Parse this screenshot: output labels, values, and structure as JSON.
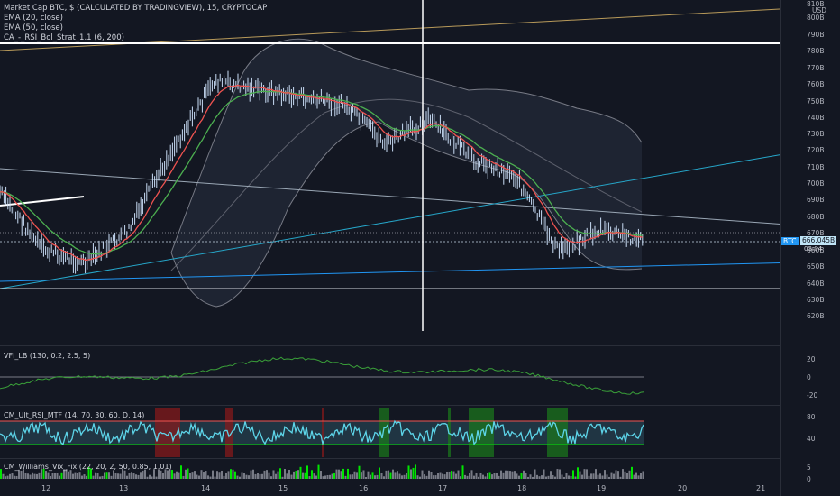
{
  "header": {
    "symbol_line": "Market Cap BTC, $ (CALCULATED BY TRADINGVIEW), 15, CRYPTOCAP",
    "indicators": [
      "EMA (20, close)",
      "EMA (50, close)",
      "CA_-_RSI_Bol_Strat_1.1 (6, 200)"
    ]
  },
  "price_axis": {
    "currency": "USD",
    "top_label": "810B",
    "ticks": [
      "800B",
      "790B",
      "780B",
      "770B",
      "760B",
      "750B",
      "740B",
      "730B",
      "720B",
      "710B",
      "700B",
      "690B",
      "680B",
      "670B",
      "660B",
      "650B",
      "640B",
      "630B",
      "620B"
    ],
    "ticks_y": [
      20,
      39,
      57,
      76,
      94,
      113,
      131,
      149,
      167,
      186,
      204,
      222,
      241,
      259,
      278,
      296,
      315,
      333,
      351
    ]
  },
  "last_price": {
    "symbol": "BTC",
    "value": "666.045B",
    "countdown": "03:04"
  },
  "panes": {
    "vfi": {
      "label": "VFI_LB (130, 0.2, 2.5, 5)",
      "ticks": [
        "20",
        "0",
        "-20"
      ]
    },
    "rsi": {
      "label": "CM_Ult_RSI_MTF (14, 70, 30, 60, D, 14)",
      "ticks": [
        "80",
        "40"
      ]
    },
    "vix": {
      "label": "CM_Williams_Vix_Fix (22, 20, 2, 50, 0.85, 1.01)",
      "ticks": [
        "5",
        "0"
      ]
    }
  },
  "time_axis": [
    "12",
    "13",
    "14",
    "15",
    "16",
    "17",
    "18",
    "19",
    "20",
    "21"
  ],
  "colors": {
    "background": "#131722",
    "candle": "#c9ddf5",
    "ema20": "#ef5350",
    "ema50": "#4caf50",
    "bollinger": "#787b86",
    "trendline": "#26a6c9",
    "vfi": "#3aa039",
    "rsi_line": "#5dd4e8",
    "vix_green": "#00e600",
    "vix_gray": "#787b86"
  },
  "chart_data": {
    "type": "line",
    "series": [
      {
        "name": "Market Cap BTC",
        "x": [
          "12",
          "12.5",
          "13",
          "13.5",
          "14",
          "14.5",
          "15",
          "15.5",
          "16",
          "16.5",
          "17",
          "17.5",
          "18",
          "18.5",
          "19",
          "19.5"
        ],
        "values": [
          695,
          660,
          652,
          672,
          720,
          762,
          757,
          752,
          748,
          724,
          739,
          715,
          705,
          660,
          672,
          666
        ]
      }
    ],
    "ylim": [
      615,
      812
    ]
  }
}
